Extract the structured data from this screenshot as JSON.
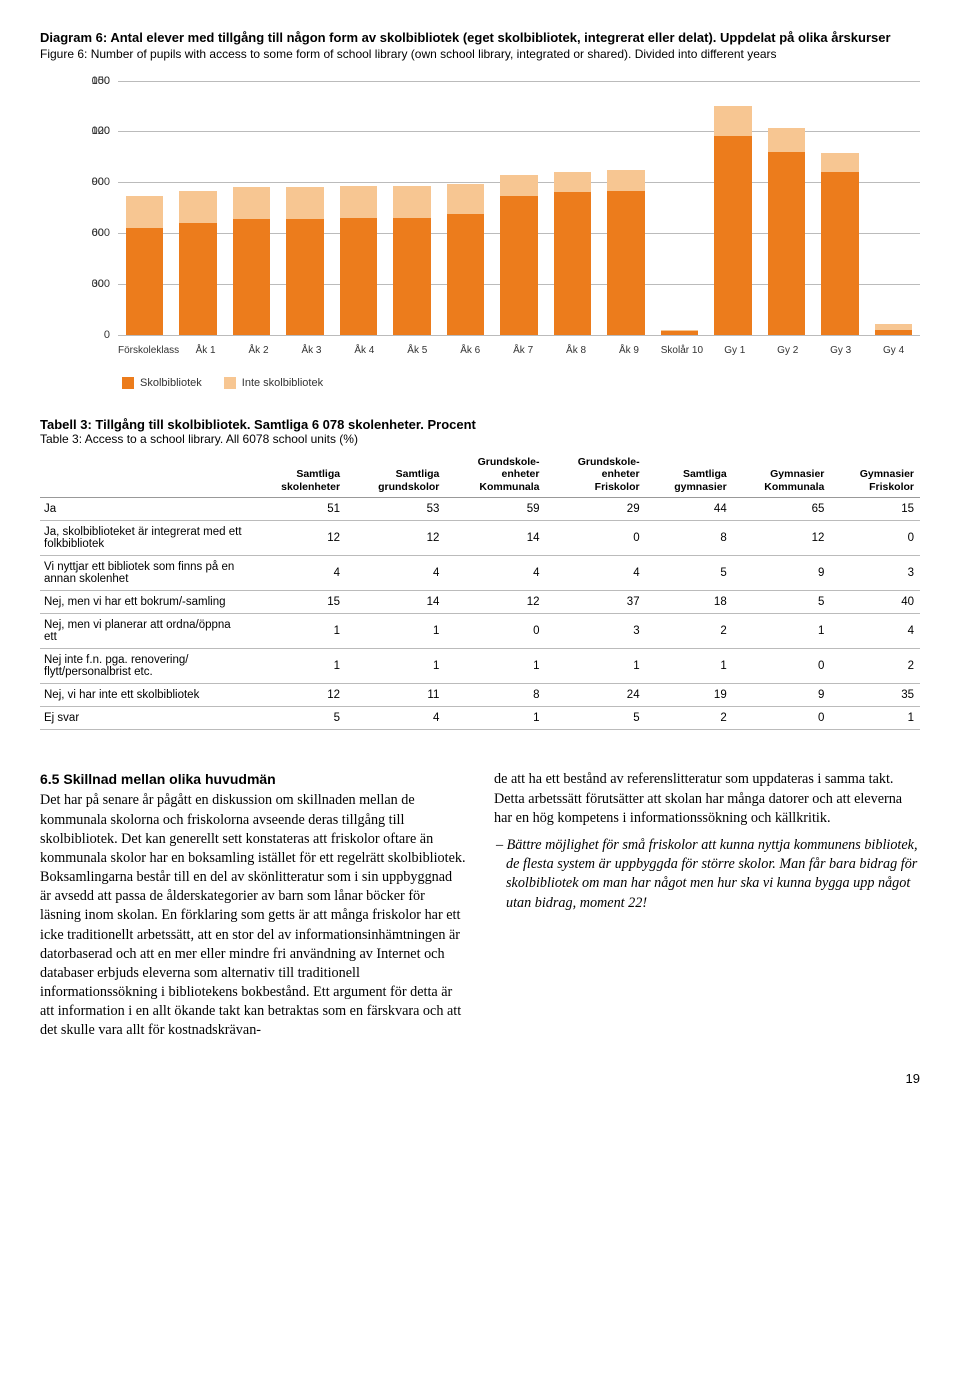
{
  "diagram": {
    "title": "Diagram 6: Antal elever med tillgång till någon form av skolbibliotek (eget skolbibliotek, integrerat eller delat). Uppdelat på olika årskurser",
    "subtitle": "Figure 6: Number of pupils with access to some form of school library (own school library, integrated or shared). Divided into different years",
    "ymax": 150000,
    "yticks": [
      0,
      30000,
      60000,
      90000,
      120000,
      150000
    ],
    "ylabels": [
      "0",
      "30 000",
      "60 000",
      "90 000",
      "120 000",
      "150 000"
    ],
    "categories": [
      "Förskoleklass",
      "Åk 1",
      "Åk 2",
      "Åk 3",
      "Åk 4",
      "Åk 5",
      "Åk 6",
      "Åk 7",
      "Åk 8",
      "Åk 9",
      "Skolår 10",
      "Gy 1",
      "Gy 2",
      "Gy 3",
      "Gy 4"
    ],
    "series1_name": "Skolbibliotek",
    "series2_name": "Inte skolbibliotek",
    "color1": "#ec7c1c",
    "color2": "#f7c692",
    "grid_color": "#bbbbbb",
    "series1": [
      63000,
      66000,
      68000,
      68000,
      69000,
      69000,
      71000,
      82000,
      84000,
      85000,
      2000,
      117000,
      108000,
      96000,
      3000
    ],
    "series2": [
      19000,
      19000,
      19000,
      19000,
      19000,
      19000,
      18000,
      12000,
      12000,
      12000,
      1000,
      18000,
      14000,
      11000,
      3000
    ]
  },
  "table": {
    "title": "Tabell 3: Tillgång till skolbibliotek. Samtliga 6 078 skolenheter. Procent",
    "subtitle": "Table 3: Access to a school library. All 6078 school units (%)",
    "columns": [
      "",
      "Samtliga\nskolenheter",
      "Samtliga\ngrundskolor",
      "Grundskole-\nenheter\nKommunala",
      "Grundskole-\nenheter\nFriskolor",
      "Samtliga\ngymnasier",
      "Gymnasier\nKommunala",
      "Gymnasier\nFriskolor"
    ],
    "rows": [
      [
        "Ja",
        "51",
        "53",
        "59",
        "29",
        "44",
        "65",
        "15"
      ],
      [
        "Ja, skolbiblioteket är integrerat med ett folkbibliotek",
        "12",
        "12",
        "14",
        "0",
        "8",
        "12",
        "0"
      ],
      [
        "Vi nyttjar ett bibliotek som finns på en annan skolenhet",
        "4",
        "4",
        "4",
        "4",
        "5",
        "9",
        "3"
      ],
      [
        "Nej, men vi har ett bokrum/-samling",
        "15",
        "14",
        "12",
        "37",
        "18",
        "5",
        "40"
      ],
      [
        "Nej, men vi planerar att ordna/öppna ett",
        "1",
        "1",
        "0",
        "3",
        "2",
        "1",
        "4"
      ],
      [
        "Nej inte f.n. pga. renovering/ flytt/personalbrist etc.",
        "1",
        "1",
        "1",
        "1",
        "1",
        "0",
        "2"
      ],
      [
        "Nej, vi har inte ett skolbibliotek",
        "12",
        "11",
        "8",
        "24",
        "19",
        "9",
        "35"
      ],
      [
        "Ej svar",
        "5",
        "4",
        "1",
        "5",
        "2",
        "0",
        "1"
      ]
    ]
  },
  "body": {
    "heading": "6.5 Skillnad mellan olika huvudmän",
    "left": "Det har på senare år pågått en diskussion om skillnaden mellan de kommunala skolorna och friskolorna avseende deras tillgång till skolbibliotek. Det kan generellt sett konstateras att friskolor oftare än kommunala skolor har en boksamling istället för ett regelrätt skolbibliotek. Boksamlingarna består till en del av skönlitteratur som i sin uppbyggnad är avsedd att passa de ålderskategorier av barn som lånar böcker för läsning inom skolan. En förklaring som getts är att många friskolor har ett icke traditionellt arbetssätt, att en stor del av informationsinhämtningen är datorbaserad och att en mer eller mindre fri användning av Internet och databaser erbjuds eleverna som alternativ till traditionell informationssökning i bibliotekens bokbestånd. Ett argument för detta är att information i en allt ökande takt kan betraktas som en färskvara och att det skulle vara allt för kostnadskrävan-",
    "right1": "de att ha ett bestånd av referenslitteratur som uppdateras i samma takt. Detta arbetssätt förutsätter att skolan har många datorer och att eleverna har en hög kompetens i informationssökning och källkritik.",
    "quote": "– Bättre möjlighet för små friskolor att kunna nyttja kommunens bibliotek, de flesta system är uppbyggda för större skolor. Man får bara bidrag för skolbibliotek om man har något men hur ska vi kunna bygga upp något utan bidrag, moment 22!"
  },
  "page": "19"
}
